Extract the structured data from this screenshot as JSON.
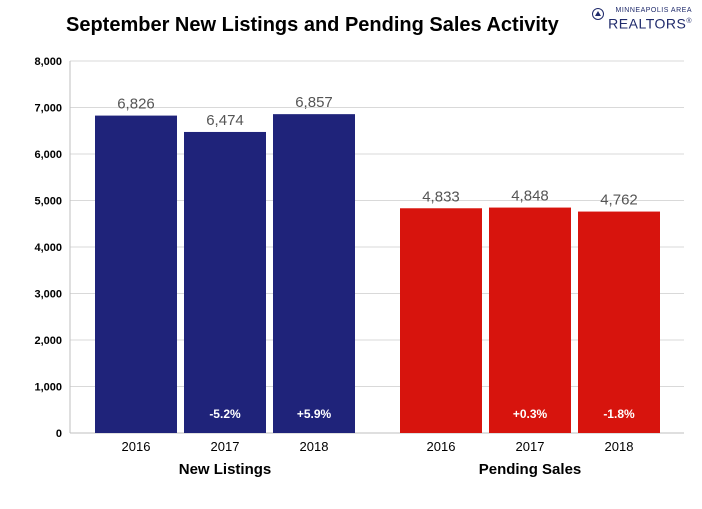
{
  "logo": {
    "line1": "MINNEAPOLIS AREA",
    "line2": "REALTORS",
    "mark": "®"
  },
  "chart_data": {
    "type": "bar",
    "title": "September New Listings and Pending Sales Activity",
    "ylim": [
      0,
      8000
    ],
    "yticks": [
      "0",
      "1,000",
      "2,000",
      "3,000",
      "4,000",
      "5,000",
      "6,000",
      "7,000",
      "8,000"
    ],
    "grid": true,
    "groups": [
      {
        "name": "New Listings",
        "color": "#1f237a",
        "bars": [
          {
            "category": "2016",
            "value": 6826,
            "label": "6,826",
            "change": ""
          },
          {
            "category": "2017",
            "value": 6474,
            "label": "6,474",
            "change": "-5.2%"
          },
          {
            "category": "2018",
            "value": 6857,
            "label": "6,857",
            "change": "+5.9%"
          }
        ]
      },
      {
        "name": "Pending Sales",
        "color": "#d7140d",
        "bars": [
          {
            "category": "2016",
            "value": 4833,
            "label": "4,833",
            "change": ""
          },
          {
            "category": "2017",
            "value": 4848,
            "label": "4,848",
            "change": "+0.3%"
          },
          {
            "category": "2018",
            "value": 4762,
            "label": "4,762",
            "change": "-1.8%"
          }
        ]
      }
    ]
  }
}
